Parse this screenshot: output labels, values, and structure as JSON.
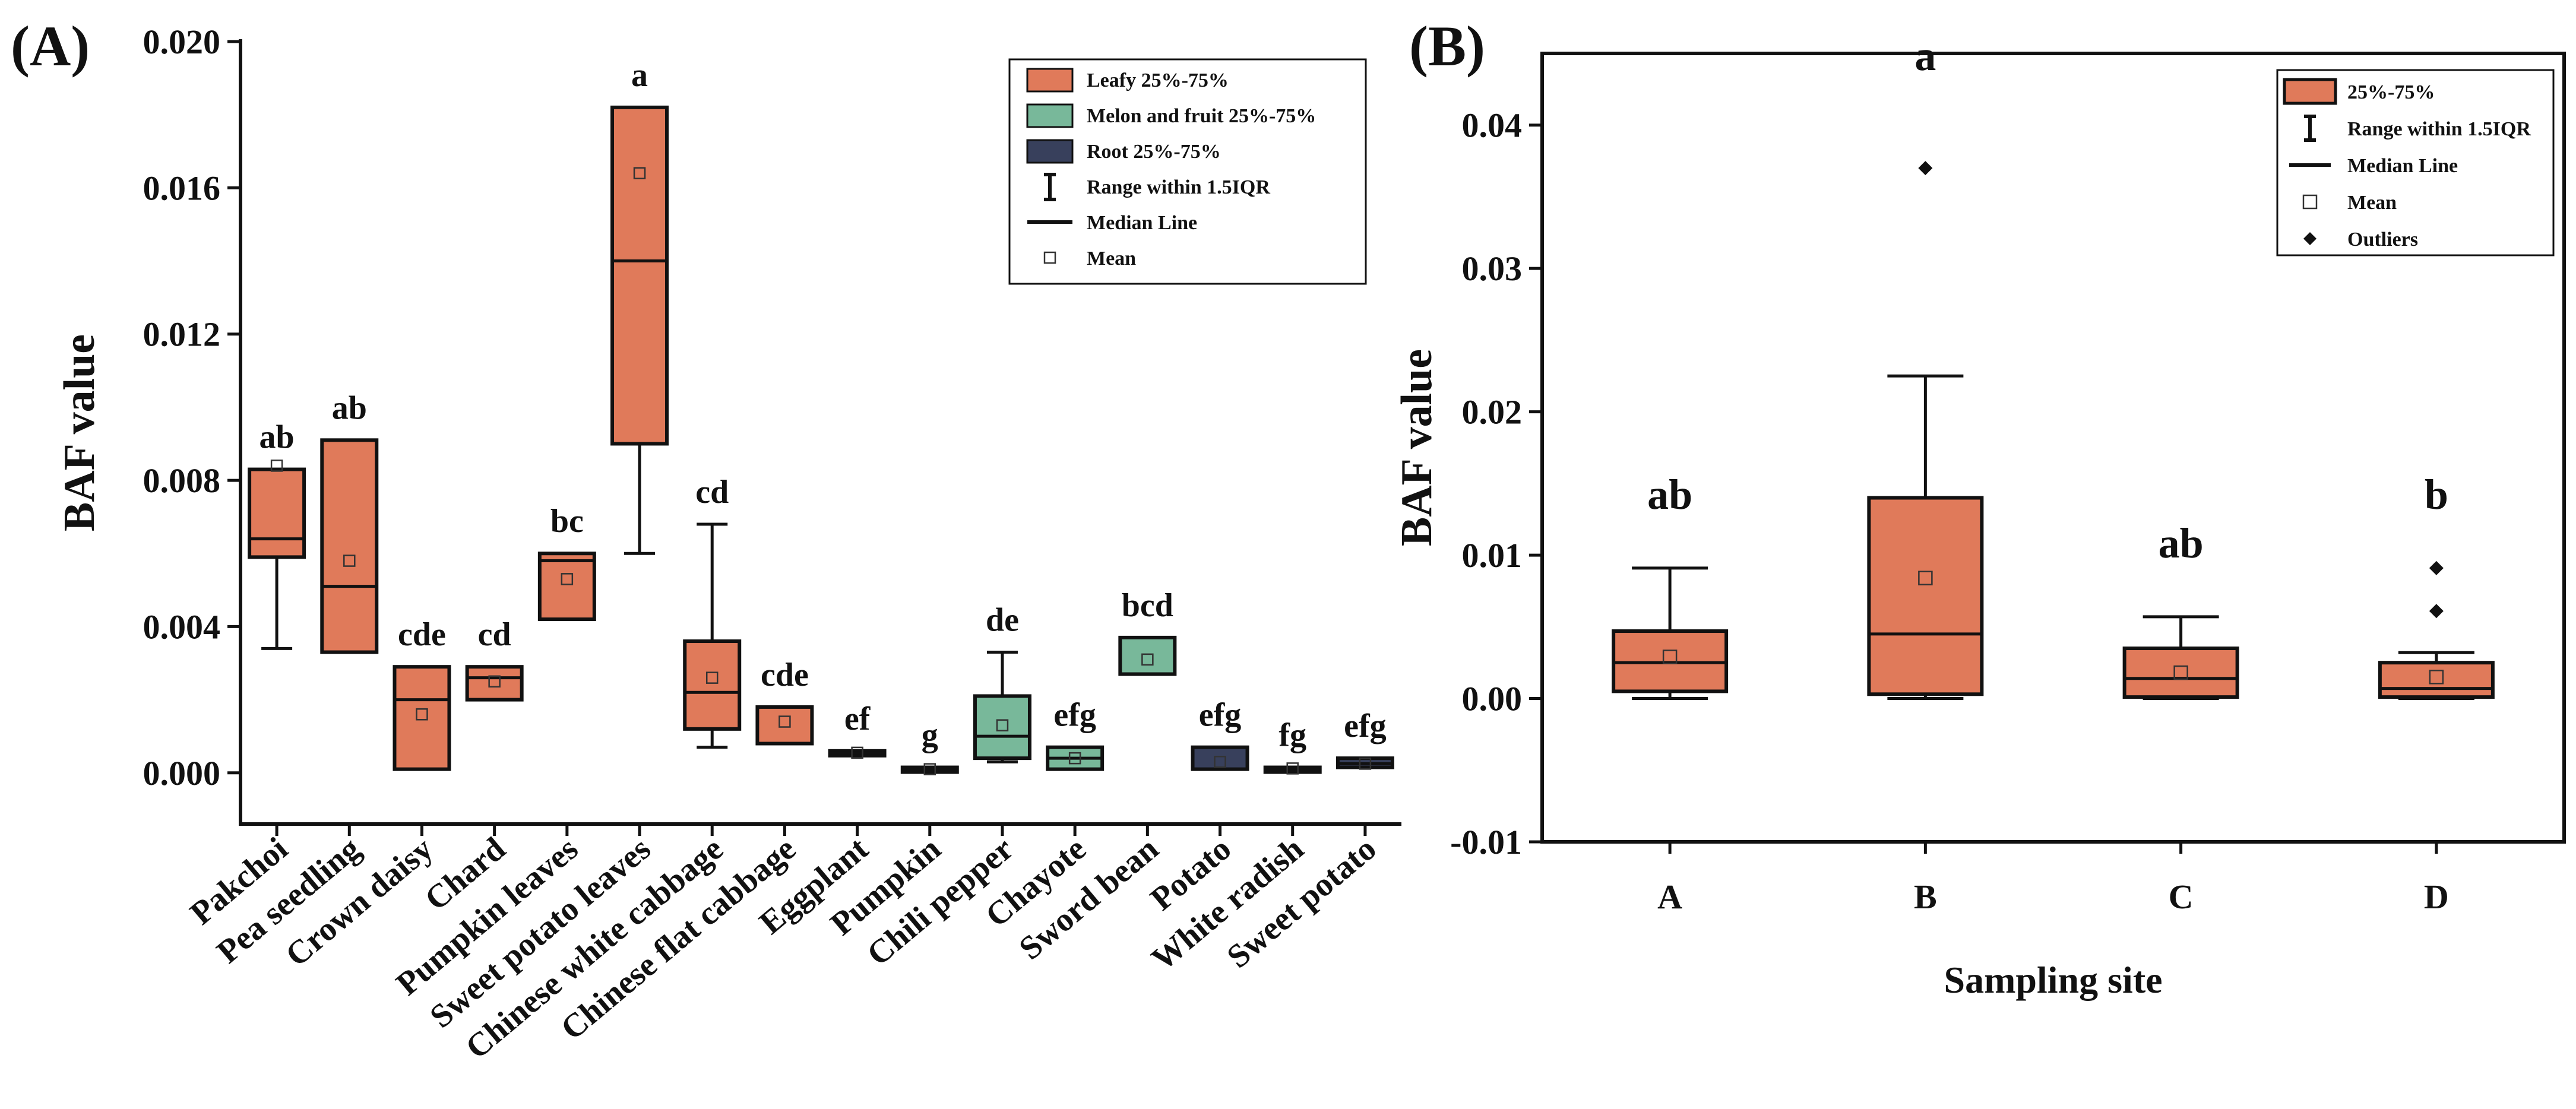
{
  "colors": {
    "leafy": "#e07a5a",
    "melon": "#78b89a",
    "root": "#38405c",
    "stroke": "#111111",
    "mean_marker": "#333333"
  },
  "chart_data": [
    {
      "type": "box",
      "panel": "(A)",
      "ylabel": "BAF value",
      "xlabel": "",
      "ylim": [
        -0.0014,
        0.02
      ],
      "yticks": [
        "0.000",
        "0.004",
        "0.008",
        "0.012",
        "0.016",
        "0.020"
      ],
      "ytick_values": [
        0,
        0.004,
        0.008,
        0.012,
        0.016,
        0.02
      ],
      "legend_position": "top-right",
      "legend": [
        {
          "label": "Leafy 25%-75%",
          "kind": "box",
          "group": "leafy"
        },
        {
          "label": "Melon and fruit 25%-75%",
          "kind": "box",
          "group": "melon"
        },
        {
          "label": "Root 25%-75%",
          "kind": "box",
          "group": "root"
        },
        {
          "label": "Range within 1.5IQR",
          "kind": "whisker"
        },
        {
          "label": "Median Line",
          "kind": "median"
        },
        {
          "label": "Mean",
          "kind": "mean"
        }
      ],
      "boxes": [
        {
          "category": "Pakchoi",
          "group": "leafy",
          "q1": 0.0059,
          "median": 0.0064,
          "q3": 0.0083,
          "whisker_low": 0.0034,
          "whisker_high": 0.0083,
          "mean": 0.0084,
          "letter": "ab"
        },
        {
          "category": "Pea seedling",
          "group": "leafy",
          "q1": 0.0033,
          "median": 0.0051,
          "q3": 0.0091,
          "whisker_low": 0.0033,
          "whisker_high": 0.0091,
          "mean": 0.0058,
          "letter": "ab"
        },
        {
          "category": "Crown daisy",
          "group": "leafy",
          "q1": 0.0001,
          "median": 0.002,
          "q3": 0.0029,
          "whisker_low": 0.0001,
          "whisker_high": 0.0029,
          "mean": 0.0016,
          "letter": "cde"
        },
        {
          "category": "Chard",
          "group": "leafy",
          "q1": 0.002,
          "median": 0.0026,
          "q3": 0.0029,
          "whisker_low": 0.002,
          "whisker_high": 0.0029,
          "mean": 0.0025,
          "letter": "cd"
        },
        {
          "category": "Pumpkin leaves",
          "group": "leafy",
          "q1": 0.0042,
          "median": 0.0058,
          "q3": 0.006,
          "whisker_low": 0.0042,
          "whisker_high": 0.006,
          "mean": 0.0053,
          "letter": "bc"
        },
        {
          "category": "Sweet potato leaves",
          "group": "leafy",
          "q1": 0.009,
          "median": 0.014,
          "q3": 0.0182,
          "whisker_low": 0.006,
          "whisker_high": 0.0182,
          "mean": 0.0164,
          "letter": "a"
        },
        {
          "category": "Chinese white cabbage",
          "group": "leafy",
          "q1": 0.0012,
          "median": 0.0022,
          "q3": 0.0036,
          "whisker_low": 0.0007,
          "whisker_high": 0.0068,
          "mean": 0.0026,
          "letter": "cd"
        },
        {
          "category": "Chinese flat cabbage",
          "group": "leafy",
          "q1": 0.0008,
          "median": 0.0018,
          "q3": 0.0018,
          "whisker_low": 0.0008,
          "whisker_high": 0.0018,
          "mean": 0.0014,
          "letter": "cde"
        },
        {
          "category": "Eggplant",
          "group": "melon",
          "q1": 0.0005,
          "median": 0.00055,
          "q3": 0.0006,
          "whisker_low": 0.0005,
          "whisker_high": 0.0006,
          "mean": 0.00055,
          "letter": "ef"
        },
        {
          "category": "Pumpkin",
          "group": "melon",
          "q1": 5e-05,
          "median": 0.0001,
          "q3": 0.00015,
          "whisker_low": 5e-05,
          "whisker_high": 0.00015,
          "mean": 0.0001,
          "letter": "g"
        },
        {
          "category": "Chili pepper",
          "group": "melon",
          "q1": 0.0004,
          "median": 0.001,
          "q3": 0.0021,
          "whisker_low": 0.0003,
          "whisker_high": 0.0033,
          "mean": 0.0013,
          "letter": "de"
        },
        {
          "category": "Chayote",
          "group": "melon",
          "q1": 0.0001,
          "median": 0.0004,
          "q3": 0.0007,
          "whisker_low": 0.0001,
          "whisker_high": 0.0007,
          "mean": 0.0004,
          "letter": "efg"
        },
        {
          "category": "Sword bean",
          "group": "melon",
          "q1": 0.0027,
          "median": 0.0037,
          "q3": 0.0037,
          "whisker_low": 0.0027,
          "whisker_high": 0.0037,
          "mean": 0.0031,
          "letter": "bcd"
        },
        {
          "category": "Potato",
          "group": "root",
          "q1": 0.0001,
          "median": 0.0007,
          "q3": 0.0007,
          "whisker_low": 0.0001,
          "whisker_high": 0.0007,
          "mean": 0.0003,
          "letter": "efg"
        },
        {
          "category": "White radish",
          "group": "root",
          "q1": 5e-05,
          "median": 0.0001,
          "q3": 0.00015,
          "whisker_low": 5e-05,
          "whisker_high": 0.00015,
          "mean": 0.00012,
          "letter": "fg"
        },
        {
          "category": "Sweet potato",
          "group": "root",
          "q1": 0.00015,
          "median": 0.00025,
          "q3": 0.0004,
          "whisker_low": 0.00015,
          "whisker_high": 0.0004,
          "mean": 0.00025,
          "letter": "efg"
        }
      ]
    },
    {
      "type": "box",
      "panel": "(B)",
      "ylabel": "BAF value",
      "xlabel": "Sampling site",
      "ylim": [
        -0.01,
        0.045
      ],
      "yticks": [
        "-0.01",
        "0.00",
        "0.01",
        "0.02",
        "0.03",
        "0.04"
      ],
      "ytick_values": [
        -0.01,
        0,
        0.01,
        0.02,
        0.03,
        0.04
      ],
      "legend_position": "top-right",
      "legend": [
        {
          "label": "25%-75%",
          "kind": "box",
          "group": "leafy"
        },
        {
          "label": "Range within 1.5IQR",
          "kind": "whisker"
        },
        {
          "label": "Median Line",
          "kind": "median"
        },
        {
          "label": "Mean",
          "kind": "mean"
        },
        {
          "label": "Outliers",
          "kind": "outlier"
        }
      ],
      "boxes": [
        {
          "category": "A",
          "group": "leafy",
          "q1": 0.0005,
          "median": 0.0025,
          "q3": 0.0047,
          "whisker_low": 0.0,
          "whisker_high": 0.0091,
          "mean": 0.0029,
          "outliers": [],
          "letter": "ab"
        },
        {
          "category": "B",
          "group": "leafy",
          "q1": 0.0003,
          "median": 0.0045,
          "q3": 0.014,
          "whisker_low": 0.0,
          "whisker_high": 0.0225,
          "mean": 0.0084,
          "outliers": [
            0.037
          ],
          "letter": "a"
        },
        {
          "category": "C",
          "group": "leafy",
          "q1": 0.0001,
          "median": 0.0014,
          "q3": 0.0035,
          "whisker_low": 0.0,
          "whisker_high": 0.0057,
          "mean": 0.0018,
          "outliers": [],
          "letter": "ab"
        },
        {
          "category": "D",
          "group": "leafy",
          "q1": 0.0001,
          "median": 0.0007,
          "q3": 0.0025,
          "whisker_low": 0.0,
          "whisker_high": 0.0032,
          "mean": 0.0015,
          "outliers": [
            0.0061,
            0.0091
          ],
          "letter": "b"
        }
      ]
    }
  ]
}
